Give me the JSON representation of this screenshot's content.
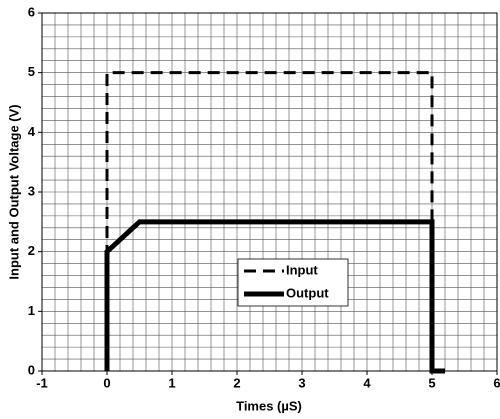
{
  "chart_data": {
    "type": "line",
    "xlabel": "Times (µS)",
    "ylabel": "Input and Output Voltage (V)",
    "xlim": [
      -1,
      6
    ],
    "xticks": [
      -1,
      0,
      1,
      2,
      3,
      4,
      5,
      6
    ],
    "ylim": [
      0,
      6
    ],
    "yticks": [
      0,
      1,
      2,
      3,
      4,
      5,
      6
    ],
    "grid": true,
    "minor_grid_step": 0.2,
    "series": [
      {
        "name": "Input",
        "color": "#000000",
        "style": "dashed",
        "x": [
          0,
          0,
          5,
          5
        ],
        "values": [
          0,
          5,
          5,
          0
        ]
      },
      {
        "name": "Output",
        "color": "#000000",
        "style": "solid",
        "x": [
          0,
          0,
          0.5,
          5,
          5,
          5.2
        ],
        "values": [
          0,
          2,
          2.5,
          2.5,
          0,
          0
        ]
      }
    ]
  }
}
